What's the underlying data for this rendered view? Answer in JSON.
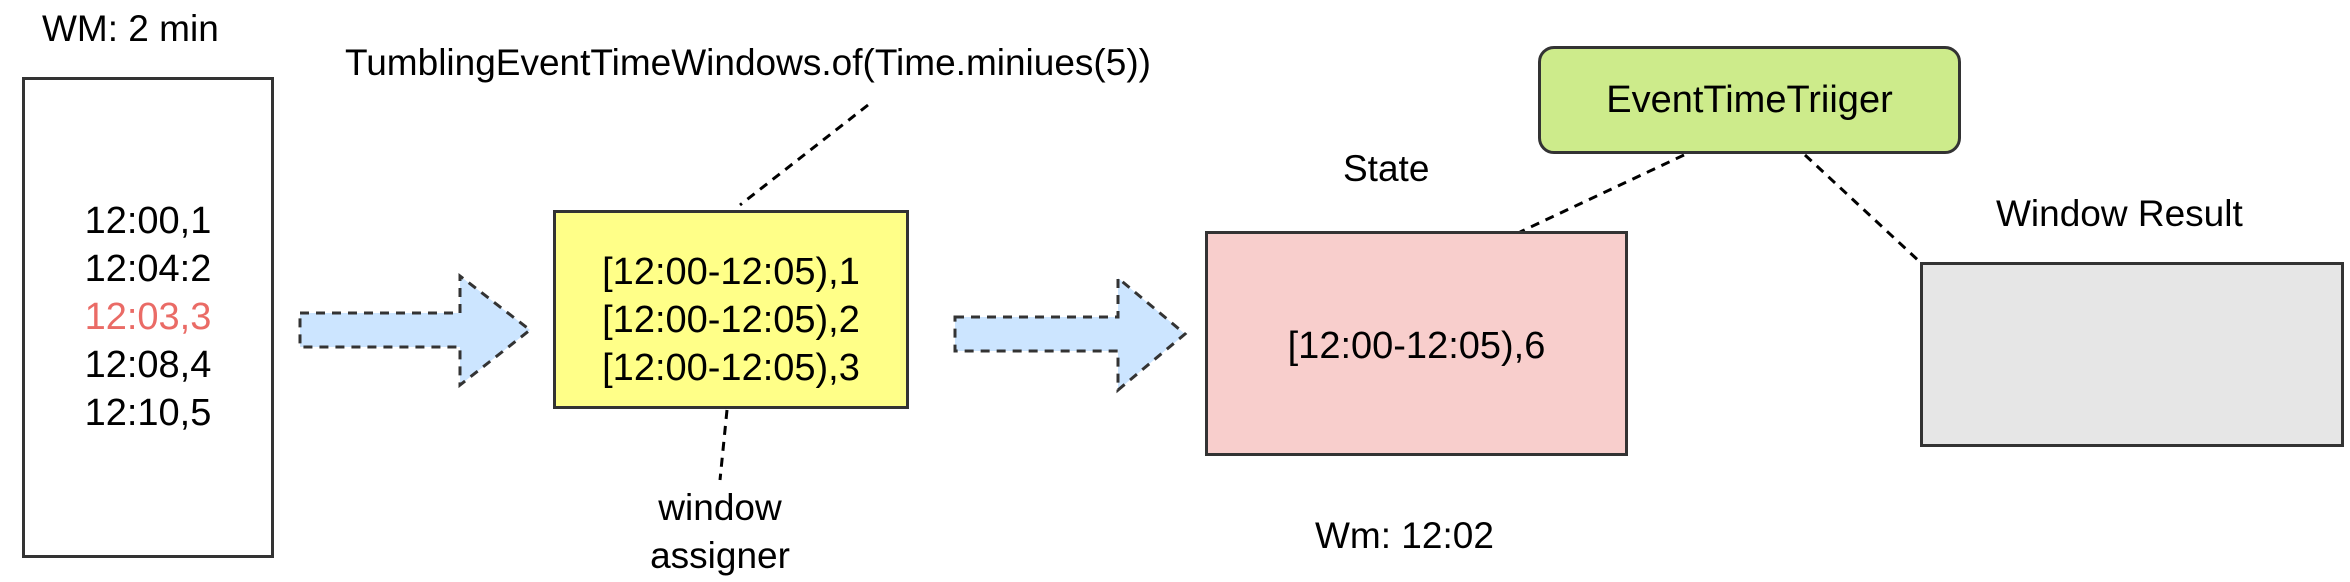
{
  "input": {
    "wm_label": "WM: 2 min",
    "events": [
      {
        "text": "12:00,1",
        "color": "#000000"
      },
      {
        "text": "12:04:2",
        "color": "#000000"
      },
      {
        "text": "12:03,3",
        "color": "#ea6b66"
      },
      {
        "text": "12:08,4",
        "color": "#000000"
      },
      {
        "text": "12:10,5",
        "color": "#000000"
      }
    ]
  },
  "assigner": {
    "function_label": "TumblingEventTimeWindows.of(Time.miniues(5))",
    "windows": [
      "[12:00-12:05),1",
      "[12:00-12:05),2",
      "[12:00-12:05),3"
    ],
    "caption_line1": "window",
    "caption_line2": "assigner",
    "fill": "#ffff88"
  },
  "state": {
    "title": "State",
    "content": "[12:00-12:05),6",
    "wm_label": "Wm: 12:02",
    "fill": "#f8cecc"
  },
  "trigger": {
    "label": "EventTimeTriiger",
    "fill": "#cdeb8b"
  },
  "result": {
    "title": "Window Result",
    "fill": "#e6e6e6"
  },
  "colors": {
    "arrow_fill": "#cce5ff",
    "late_event": "#ea6b66"
  }
}
